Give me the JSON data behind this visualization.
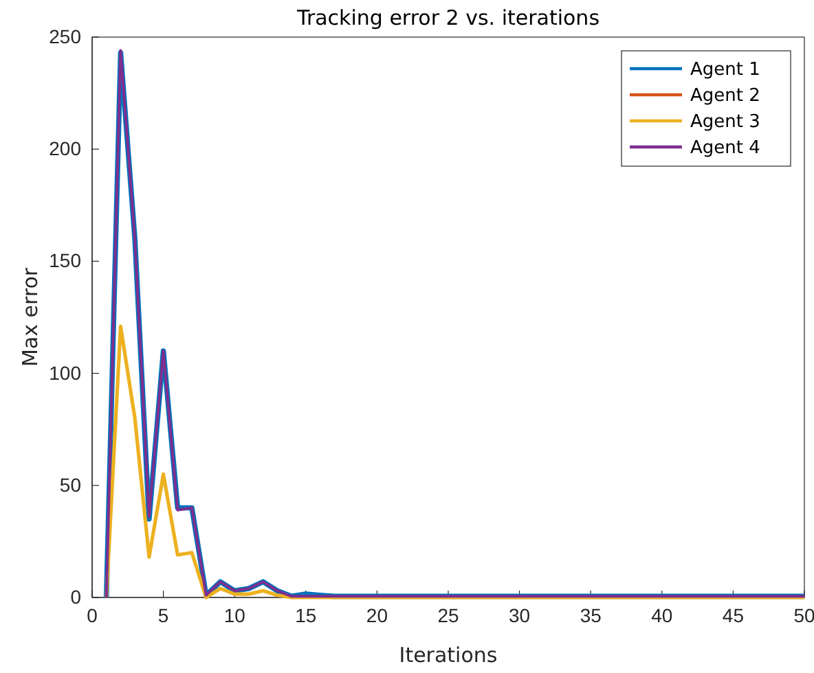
{
  "chart_data": {
    "type": "line",
    "title": "Tracking error 2 vs. iterations",
    "xlabel": "Iterations",
    "ylabel": "Max error",
    "x": [
      1,
      2,
      3,
      4,
      5,
      6,
      7,
      8,
      9,
      10,
      11,
      12,
      13,
      14,
      15,
      16,
      17,
      18,
      19,
      20,
      21,
      22,
      23,
      24,
      25,
      26,
      27,
      28,
      29,
      30,
      31,
      32,
      33,
      34,
      35,
      36,
      37,
      38,
      39,
      40,
      41,
      42,
      43,
      44,
      45,
      46,
      47,
      48,
      49,
      50
    ],
    "xlim": [
      0,
      50
    ],
    "xticks": [
      0,
      5,
      10,
      15,
      20,
      25,
      30,
      35,
      40,
      45,
      50
    ],
    "ylim": [
      0,
      250
    ],
    "yticks": [
      0,
      50,
      100,
      150,
      200,
      250
    ],
    "legend": "top right",
    "grid": false,
    "line_style": "solid",
    "marker": "none",
    "series": [
      {
        "name": "Agent 1",
        "color": "#0072bd",
        "values": [
          0,
          243,
          160,
          35,
          110,
          40,
          40,
          1,
          7,
          3,
          4,
          7,
          3,
          0.5,
          1.5,
          1,
          0.5,
          0.5,
          0.5,
          0.5,
          0.5,
          0.5,
          0.5,
          0.5,
          0.5,
          0.5,
          0.5,
          0.5,
          0.5,
          0.5,
          0.5,
          0.5,
          0.5,
          0.5,
          0.5,
          0.5,
          0.5,
          0.5,
          0.5,
          0.5,
          0.5,
          0.5,
          0.5,
          0.5,
          0.5,
          0.5,
          0.5,
          0.5,
          0.5,
          0.5
        ]
      },
      {
        "name": "Agent 2",
        "color": "#d95319",
        "values": [
          null,
          null,
          null,
          null,
          null,
          null,
          null,
          null,
          null,
          null,
          null,
          null,
          null,
          null,
          null,
          null,
          null,
          null,
          null,
          null,
          null,
          null,
          null,
          null,
          null,
          null,
          null,
          null,
          null,
          null,
          null,
          null,
          null,
          null,
          null,
          null,
          null,
          null,
          null,
          null,
          null,
          null,
          null,
          null,
          null,
          null,
          null,
          null,
          null,
          null
        ]
      },
      {
        "name": "Agent 3",
        "color": "#edb120",
        "values": [
          0,
          121,
          80,
          18,
          55,
          19,
          20,
          0,
          4,
          1.5,
          1.5,
          3,
          1,
          0,
          0,
          0,
          0,
          0,
          0,
          0,
          0,
          0,
          0,
          0,
          0,
          0,
          0,
          0,
          0,
          0,
          0,
          0,
          0,
          0,
          0,
          0,
          0,
          0,
          0,
          0,
          0,
          0,
          0,
          0,
          0,
          0,
          0,
          0,
          0,
          0
        ]
      },
      {
        "name": "Agent 4",
        "color": "#7e2f8e",
        "values": [
          0,
          244,
          160,
          36,
          110,
          39,
          40,
          1,
          7,
          3,
          4,
          7,
          3,
          0.5,
          0.5,
          0.5,
          0.5,
          0.5,
          0.5,
          0.5,
          0.5,
          0.5,
          0.5,
          0.5,
          0.5,
          0.5,
          0.5,
          0.5,
          0.5,
          0.5,
          0.5,
          0.5,
          0.5,
          0.5,
          0.5,
          0.5,
          0.5,
          0.5,
          0.5,
          0.5,
          0.5,
          0.5,
          0.5,
          0.5,
          0.5,
          0.5,
          0.5,
          0.5,
          0.5,
          0.5
        ]
      }
    ]
  }
}
